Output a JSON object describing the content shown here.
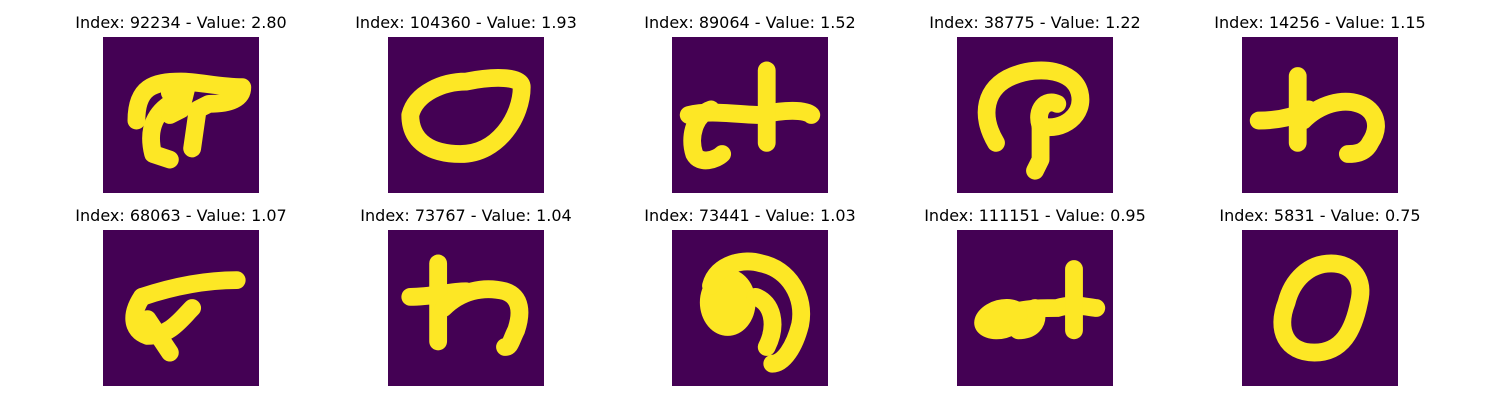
{
  "colors": {
    "background": "#440154",
    "foreground": "#fde725",
    "edge": "#21918c"
  },
  "panels": [
    {
      "index": "92234",
      "value": "2.80",
      "title": "Index: 92234 - Value: 2.80",
      "glyph": "hook-shape"
    },
    {
      "index": "104360",
      "value": "1.93",
      "title": "Index: 104360 - Value: 1.93",
      "glyph": "oval-ring"
    },
    {
      "index": "89064",
      "value": "1.52",
      "title": "Index: 89064 - Value: 1.52",
      "glyph": "cross-hook"
    },
    {
      "index": "38775",
      "value": "1.22",
      "title": "Index: 38775 - Value: 1.22",
      "glyph": "loop-p"
    },
    {
      "index": "14256",
      "value": "1.15",
      "title": "Index: 14256 - Value: 1.15",
      "glyph": "wa-shape"
    },
    {
      "index": "68063",
      "value": "1.07",
      "title": "Index: 68063 - Value: 1.07",
      "glyph": "wedge"
    },
    {
      "index": "73767",
      "value": "1.04",
      "title": "Index: 73767 - Value: 1.04",
      "glyph": "wa-shape"
    },
    {
      "index": "73441",
      "value": "1.03",
      "title": "Index: 73441 - Value: 1.03",
      "glyph": "blob-hook"
    },
    {
      "index": "111151",
      "value": "0.95",
      "title": "Index: 111151 - Value: 0.95",
      "glyph": "blob-cross"
    },
    {
      "index": "5831",
      "value": "0.75",
      "title": "Index: 5831 - Value: 0.75",
      "glyph": "zero-ring"
    }
  ]
}
